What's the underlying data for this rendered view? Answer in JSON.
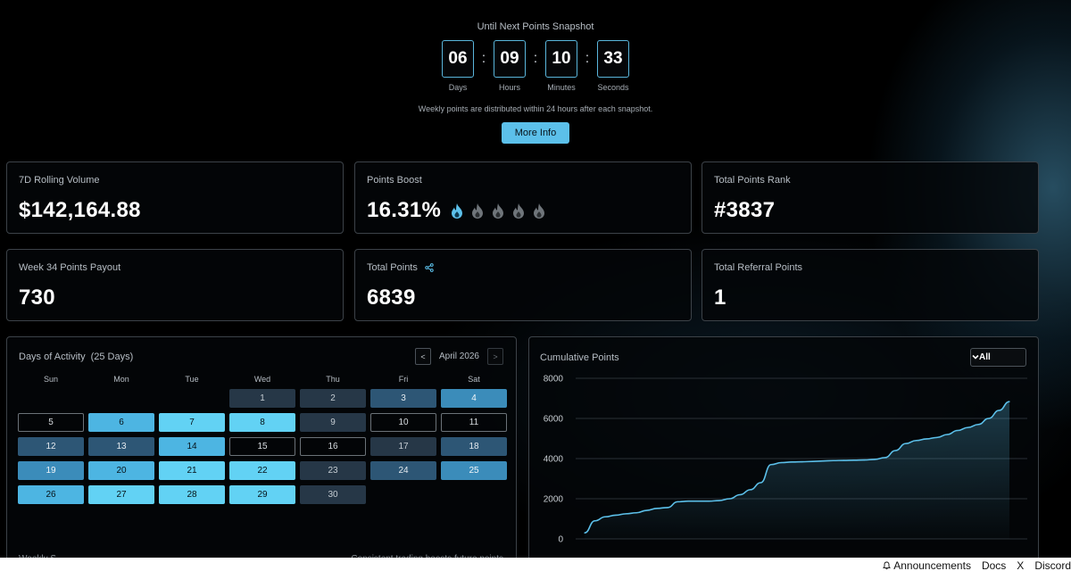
{
  "countdown": {
    "title": "Until Next Points Snapshot",
    "units": [
      {
        "value": "06",
        "label": "Days"
      },
      {
        "value": "09",
        "label": "Hours"
      },
      {
        "value": "10",
        "label": "Minutes"
      },
      {
        "value": "33",
        "label": "Seconds"
      }
    ],
    "separator": ":",
    "note": "Weekly points are distributed within 24 hours after each snapshot.",
    "button_label": "More Info"
  },
  "stats": {
    "rolling_volume": {
      "label": "7D Rolling Volume",
      "value": "$142,164.88"
    },
    "points_boost": {
      "label": "Points Boost",
      "value": "16.31%",
      "flames_active": 1,
      "flames_total": 5
    },
    "total_points_rank": {
      "label": "Total Points Rank",
      "value": "#3837"
    },
    "week_payout": {
      "label": "Week 34 Points Payout",
      "value": "730"
    },
    "total_points": {
      "label": "Total Points",
      "value": "6839",
      "icon": "share-icon"
    },
    "total_referral_points": {
      "label": "Total Referral Points",
      "value": "1"
    }
  },
  "calendar": {
    "title": "Days of Activity",
    "count": "(25 Days)",
    "month": "April 2026",
    "prev_label": "<",
    "next_label": ">",
    "weekdays": [
      "Sun",
      "Mon",
      "Tue",
      "Wed",
      "Thu",
      "Fri",
      "Sat"
    ],
    "first_weekday_index": 3,
    "days": [
      {
        "day": "1",
        "level": 1
      },
      {
        "day": "2",
        "level": 1
      },
      {
        "day": "3",
        "level": 2
      },
      {
        "day": "4",
        "level": 3
      },
      {
        "day": "5",
        "level": 0
      },
      {
        "day": "6",
        "level": 4
      },
      {
        "day": "7",
        "level": 5
      },
      {
        "day": "8",
        "level": 5
      },
      {
        "day": "9",
        "level": 1
      },
      {
        "day": "10",
        "level": 0
      },
      {
        "day": "11",
        "level": 0
      },
      {
        "day": "12",
        "level": 2
      },
      {
        "day": "13",
        "level": 2
      },
      {
        "day": "14",
        "level": 4
      },
      {
        "day": "15",
        "level": 0
      },
      {
        "day": "16",
        "level": 0
      },
      {
        "day": "17",
        "level": 1
      },
      {
        "day": "18",
        "level": 2
      },
      {
        "day": "19",
        "level": 3
      },
      {
        "day": "20",
        "level": 4
      },
      {
        "day": "21",
        "level": 5
      },
      {
        "day": "22",
        "level": 5
      },
      {
        "day": "23",
        "level": 1
      },
      {
        "day": "24",
        "level": 2
      },
      {
        "day": "25",
        "level": 3
      },
      {
        "day": "26",
        "level": 4
      },
      {
        "day": "27",
        "level": 5
      },
      {
        "day": "28",
        "level": 5
      },
      {
        "day": "29",
        "level": 5
      },
      {
        "day": "30",
        "level": 1
      }
    ],
    "footer_left": "Weekly S",
    "footer_right": "Consistent trading boosts future points"
  },
  "chart_panel": {
    "title": "Cumulative Points",
    "select_value": "All"
  },
  "chart_data": {
    "type": "area",
    "title": "Cumulative Points",
    "xlabel": "",
    "ylabel": "",
    "ylim": [
      0,
      8000
    ],
    "yticks": [
      "8000",
      "6000",
      "4000",
      "2000",
      "0"
    ],
    "grid": true,
    "color": "#5cc0ea",
    "y": [
      300,
      900,
      1100,
      1180,
      1250,
      1300,
      1420,
      1520,
      1560,
      1850,
      1880,
      1880,
      1880,
      1910,
      2000,
      2200,
      2450,
      2800,
      3700,
      3800,
      3830,
      3840,
      3860,
      3880,
      3900,
      3910,
      3920,
      3930,
      3960,
      4050,
      4400,
      4750,
      4900,
      4980,
      5050,
      5200,
      5400,
      5550,
      5700,
      6000,
      6400,
      6839
    ]
  },
  "footer": {
    "links": [
      "Announcements",
      "Docs",
      "X",
      "Discord"
    ]
  },
  "colors": {
    "accent": "#5cc0ea",
    "background": "#000000",
    "card_border": "#3c4248"
  }
}
